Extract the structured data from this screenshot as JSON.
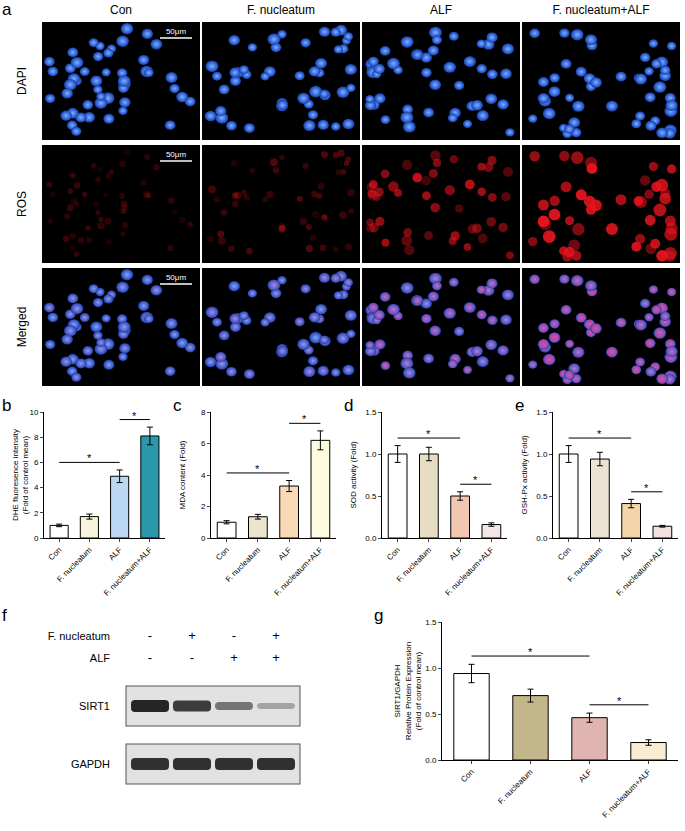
{
  "panel_a": {
    "label": "a",
    "columns": [
      "Con",
      "F. nucleatum",
      "ALF",
      "F. nucleatum+ALF"
    ],
    "rows": [
      "DAPI",
      "ROS",
      "Merged"
    ],
    "scale_bar": "50μm"
  },
  "chart_data": [
    {
      "label": "b",
      "type": "bar",
      "ylabel": [
        "DHE fluoresence intensity",
        "(Fold of control mean)"
      ],
      "categories": [
        "Con",
        "F. nucleatum",
        "ALF",
        "F. nucleatum+ALF"
      ],
      "values": [
        1.0,
        1.7,
        4.9,
        8.1
      ],
      "errors": [
        0.1,
        0.2,
        0.5,
        0.7
      ],
      "colors": [
        "#ffffff",
        "#f8f4dc",
        "#bcd7f2",
        "#2a97aa"
      ],
      "ylim": [
        0,
        10
      ],
      "yticks": [
        0,
        2,
        4,
        6,
        8,
        10
      ],
      "annotations": [
        {
          "text": "*",
          "from": 0,
          "to": 2
        },
        {
          "text": "*",
          "from": 2,
          "to": 3
        }
      ]
    },
    {
      "label": "c",
      "type": "bar",
      "ylabel": [
        "MDA content (Fold)"
      ],
      "categories": [
        "Con",
        "F. nucleatum",
        "ALF",
        "F. nucleatum+ALF"
      ],
      "values": [
        1.0,
        1.35,
        3.3,
        6.2
      ],
      "errors": [
        0.1,
        0.15,
        0.35,
        0.6
      ],
      "colors": [
        "#ffffff",
        "#ece4cf",
        "#f9d9b6",
        "#fdfbdf"
      ],
      "ylim": [
        0,
        8
      ],
      "yticks": [
        0,
        2,
        4,
        6,
        8
      ],
      "annotations": [
        {
          "text": "*",
          "from": 0,
          "to": 2
        },
        {
          "text": "*",
          "from": 2,
          "to": 3
        }
      ]
    },
    {
      "label": "d",
      "type": "bar",
      "ylabel": [
        "SOD activity (Fold)"
      ],
      "categories": [
        "Con",
        "F. nucleatum",
        "ALF",
        "F. nucleatum+ALF"
      ],
      "values": [
        1.0,
        1.0,
        0.5,
        0.16
      ],
      "errors": [
        0.1,
        0.08,
        0.05,
        0.02
      ],
      "colors": [
        "#ffffff",
        "#e7ddc5",
        "#f2c7b1",
        "#f4e6e6"
      ],
      "ylim": [
        0,
        1.5
      ],
      "yticks": [
        {
          "value": 0,
          "label": "0.0"
        },
        0.5,
        {
          "value": 1,
          "label": "1.0"
        },
        1.5
      ],
      "annotations": [
        {
          "text": "*",
          "from": 0,
          "to": 2
        },
        {
          "text": "*",
          "from": 2,
          "to": 3
        }
      ]
    },
    {
      "label": "e",
      "type": "bar",
      "ylabel": [
        "GSH-Px activity (Fold)"
      ],
      "categories": [
        "Con",
        "F. nucleatum",
        "ALF",
        "F. nucleatum+ALF"
      ],
      "values": [
        1.0,
        0.94,
        0.41,
        0.14
      ],
      "errors": [
        0.1,
        0.08,
        0.05,
        0.01
      ],
      "colors": [
        "#ffffff",
        "#ebe4d5",
        "#f2d5a9",
        "#f2e0e0"
      ],
      "ylim": [
        0,
        1.5
      ],
      "yticks": [
        {
          "value": 0,
          "label": "0.0"
        },
        0.5,
        {
          "value": 1,
          "label": "1.0"
        },
        1.5
      ],
      "annotations": [
        {
          "text": "*",
          "from": 0,
          "to": 2
        },
        {
          "text": "*",
          "from": 2,
          "to": 3
        }
      ]
    },
    {
      "label": "g",
      "type": "bar",
      "ylabel": [
        "SIRT1/GAPDH",
        "Relative Protein Expression",
        "(Fold of control mean)"
      ],
      "categories": [
        "Con",
        "F. nucleatum",
        "ALF",
        "F. nucleatum+ALF"
      ],
      "values": [
        0.94,
        0.7,
        0.46,
        0.19
      ],
      "errors": [
        0.1,
        0.07,
        0.05,
        0.03
      ],
      "colors": [
        "#ffffff",
        "#c3b68b",
        "#e0b5b1",
        "#f8ecd2"
      ],
      "ylim": [
        0,
        1.5
      ],
      "yticks": [
        {
          "value": 0,
          "label": "0.0"
        },
        0.5,
        {
          "value": 1,
          "label": "1.0"
        },
        1.5
      ],
      "annotations": [
        {
          "text": "*",
          "from": 0,
          "to": 2
        },
        {
          "text": "*",
          "from": 2,
          "to": 3
        }
      ]
    }
  ],
  "panel_f": {
    "label": "f",
    "rows": [
      {
        "name": "F. nucleatum",
        "signs": [
          "-",
          "+",
          "-",
          "+"
        ]
      },
      {
        "name": "ALF",
        "signs": [
          "-",
          "-",
          "+",
          "+"
        ]
      }
    ],
    "bands": [
      "SIRT1",
      "GAPDH"
    ]
  }
}
